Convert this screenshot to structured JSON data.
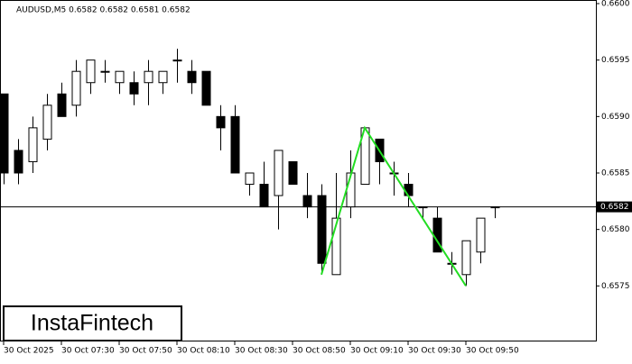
{
  "chart_data": {
    "type": "candlestick",
    "title": "AUDUSD,M5  0.6582 0.6582 0.6581 0.6582",
    "logo": "InstaFintech",
    "categories": [
      "30 Oct 2025",
      null,
      null,
      null,
      "30 Oct 07:30",
      null,
      null,
      null,
      "30 Oct 07:50",
      null,
      null,
      null,
      "30 Oct 08:10",
      null,
      null,
      null,
      "30 Oct 08:30",
      null,
      null,
      null,
      "30 Oct 08:50",
      null,
      null,
      null,
      "30 Oct 09:10",
      null,
      null,
      null,
      "30 Oct 09:30",
      null,
      null,
      null,
      "30 Oct 09:50",
      null,
      null
    ],
    "open": [
      0.6592,
      0.6587,
      0.6586,
      0.6588,
      0.6592,
      0.6591,
      0.6593,
      0.6594,
      0.6593,
      0.6593,
      0.6593,
      0.6593,
      0.6595,
      0.6594,
      0.6594,
      0.659,
      0.659,
      0.6584,
      0.6584,
      0.6583,
      0.6586,
      0.6583,
      0.6583,
      0.6576,
      0.6582,
      0.6584,
      0.6588,
      0.6585,
      0.6584,
      0.6582,
      0.6581,
      0.6577,
      0.6576,
      0.6578,
      0.6582
    ],
    "high": [
      0.6592,
      0.6588,
      0.659,
      0.6592,
      0.6593,
      0.6595,
      0.6595,
      0.6595,
      0.6594,
      0.6594,
      0.6595,
      0.6594,
      0.6596,
      0.6595,
      0.6594,
      0.6591,
      0.6591,
      0.6585,
      0.6586,
      0.6587,
      0.6586,
      0.6585,
      0.6584,
      0.6585,
      0.6587,
      0.6589,
      0.6588,
      0.6586,
      0.6585,
      0.6582,
      0.6582,
      0.6578,
      0.6579,
      0.6581,
      0.6582
    ],
    "low": [
      0.6584,
      0.6584,
      0.6585,
      0.6587,
      0.659,
      0.659,
      0.6592,
      0.6593,
      0.6592,
      0.6591,
      0.6591,
      0.6592,
      0.6593,
      0.6592,
      0.6591,
      0.6587,
      0.6585,
      0.6583,
      0.6582,
      0.658,
      0.6584,
      0.6581,
      0.6576,
      0.6576,
      0.6581,
      0.6584,
      0.6584,
      0.6583,
      0.6582,
      0.6581,
      0.6578,
      0.6576,
      0.6575,
      0.6577,
      0.6581
    ],
    "close": [
      0.6585,
      0.6585,
      0.6589,
      0.6591,
      0.659,
      0.6594,
      0.6595,
      0.6594,
      0.6594,
      0.6592,
      0.6594,
      0.6594,
      0.6595,
      0.6593,
      0.6591,
      0.6589,
      0.6585,
      0.6585,
      0.6582,
      0.6587,
      0.6584,
      0.6582,
      0.6577,
      0.6581,
      0.6585,
      0.6589,
      0.6586,
      0.6585,
      0.6583,
      0.6582,
      0.6578,
      0.6577,
      0.6579,
      0.6581,
      0.6582
    ],
    "bull_color": "#ffffff",
    "bear_color": "#000000",
    "last_price": 0.6582,
    "pattern": {
      "color": "#22dd22",
      "x": [
        22,
        25,
        32
      ],
      "values": [
        0.6576,
        0.6589,
        0.6575
      ]
    },
    "ylim": [
      0.657,
      0.66
    ],
    "yticks": [
      {
        "value": 0.66,
        "label": "0.6600"
      },
      0.6595,
      {
        "value": 0.659,
        "label": "0.6590"
      },
      0.6585,
      {
        "value": 0.658,
        "label": "0.6580"
      },
      0.6575
    ]
  }
}
